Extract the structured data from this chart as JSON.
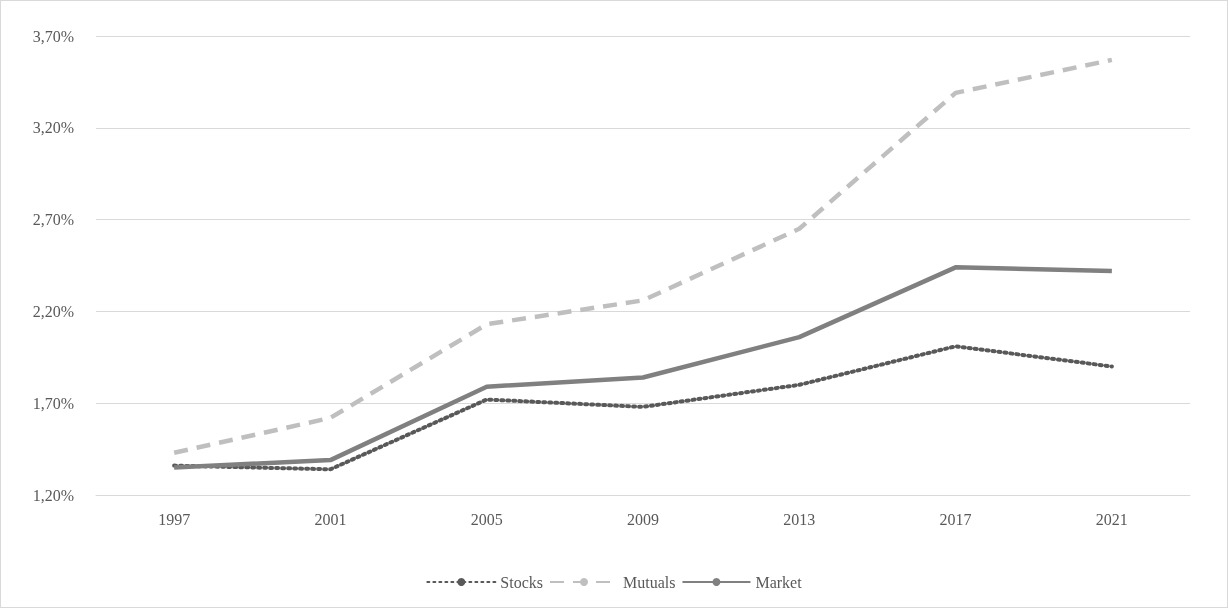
{
  "chart_data": {
    "type": "line",
    "categories": [
      "1997",
      "2001",
      "2005",
      "2009",
      "2013",
      "2017",
      "2021"
    ],
    "series": [
      {
        "name": "Stocks",
        "color": "#595959",
        "line_style": "dotted",
        "values": [
          1.36,
          1.34,
          1.72,
          1.68,
          1.8,
          2.01,
          1.9
        ]
      },
      {
        "name": "Mutuals",
        "color": "#bfbfbf",
        "line_style": "dashed",
        "values": [
          1.43,
          1.62,
          2.13,
          2.26,
          2.65,
          3.39,
          3.57
        ]
      },
      {
        "name": "Market",
        "color": "#808080",
        "line_style": "solid",
        "values": [
          1.35,
          1.39,
          1.79,
          1.84,
          2.06,
          2.44,
          2.42
        ]
      }
    ],
    "ylim": [
      1.2,
      3.7
    ],
    "yticks": [
      {
        "value": 1.2,
        "label": "1,20%"
      },
      {
        "value": 1.7,
        "label": "1,70%"
      },
      {
        "value": 2.2,
        "label": "2,20%"
      },
      {
        "value": 2.7,
        "label": "2,70%"
      },
      {
        "value": 3.2,
        "label": "3,20%"
      },
      {
        "value": 3.7,
        "label": "3,70%"
      }
    ],
    "grid": "y",
    "legend": "bottom",
    "marker": "none"
  }
}
